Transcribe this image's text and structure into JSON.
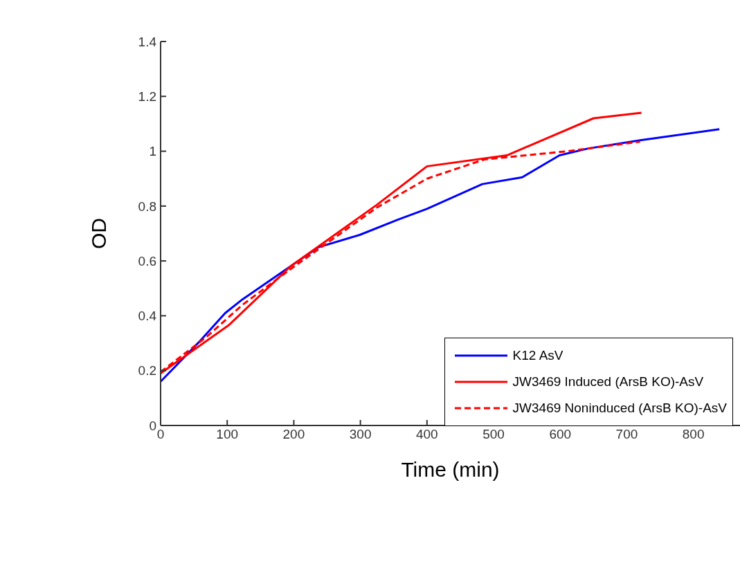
{
  "chart_data": {
    "type": "line",
    "xlabel": "Time (min)",
    "ylabel": "OD",
    "xlim": [
      0,
      870
    ],
    "xticks": [
      0,
      100,
      200,
      300,
      400,
      500,
      600,
      700,
      800
    ],
    "ylim": [
      0,
      1.4
    ],
    "yticks": [
      0,
      0.2,
      0.4,
      0.6,
      0.8,
      1,
      1.2,
      1.4
    ],
    "grid": false,
    "legend": "bottom right",
    "marker": "none",
    "series": [
      {
        "name": "K12 AsV",
        "color": "#0000ff",
        "line_style": "solid",
        "x": [
          0,
          60,
          97,
          123,
          195,
          237,
          299,
          356,
          400,
          483,
          543,
          599,
          642,
          720,
          839
        ],
        "values": [
          0.16,
          0.31,
          0.41,
          0.46,
          0.58,
          0.65,
          0.695,
          0.75,
          0.79,
          0.88,
          0.905,
          0.985,
          1.01,
          1.04,
          1.08
        ]
      },
      {
        "name": "JW3469 Induced (ArsB KO)-AsV",
        "color": "#ff0000",
        "line_style": "solid",
        "x": [
          0,
          102,
          195,
          325,
          400,
          520,
          650,
          722
        ],
        "values": [
          0.19,
          0.365,
          0.58,
          0.805,
          0.945,
          0.985,
          1.12,
          1.14
        ]
      },
      {
        "name": "JW3469 Noninduced (ArsB KO)-AsV",
        "color": "#ff0000",
        "line_style": "dashed",
        "x": [
          0,
          70,
          123,
          195,
          325,
          400,
          486,
          611,
          720
        ],
        "values": [
          0.195,
          0.325,
          0.44,
          0.57,
          0.795,
          0.9,
          0.97,
          1.0,
          1.035
        ]
      }
    ]
  }
}
